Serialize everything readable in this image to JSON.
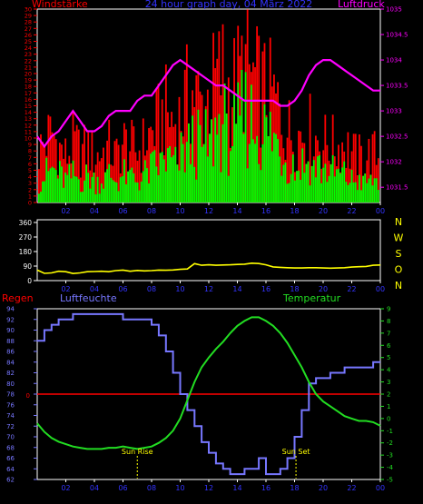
{
  "header": {
    "left_label": "Windstärke",
    "title": "24 hour graph day, 04 März 2022",
    "right_label": "Luftdruck"
  },
  "colors": {
    "background": "#000000",
    "frame": "#ffffff",
    "wind_gust": "#ff0000",
    "wind_avg": "#00ff00",
    "pressure": "#ff00ff",
    "direction": "#ffff00",
    "humidity": "#7777ff",
    "temperature": "#22dd22",
    "rain": "#ff0000",
    "title": "#3333ff",
    "x_ticks": "#3333ff",
    "compass": "#ffff00",
    "sun_marker": "#ffff00"
  },
  "chart_data": [
    {
      "type": "bar",
      "name_left": "Windstärke",
      "name_right": "Luftdruck",
      "x_ticks": [
        "02",
        "04",
        "06",
        "08",
        "10",
        "12",
        "14",
        "16",
        "18",
        "20",
        "22",
        "00"
      ],
      "y_left_ticks": [
        "0",
        "1",
        "2",
        "3",
        "4",
        "5",
        "6",
        "7",
        "8",
        "9",
        "10",
        "11",
        "12",
        "13",
        "14",
        "15",
        "16",
        "17",
        "18",
        "19",
        "20",
        "21",
        "22",
        "23",
        "24",
        "25",
        "26",
        "27",
        "28",
        "29",
        "30"
      ],
      "y_left_range": [
        0,
        30
      ],
      "y_right_ticks": [
        "1031.5",
        "1032",
        "1032.5",
        "1033",
        "1033.5",
        "1034",
        "1034.5",
        "1035"
      ],
      "y_right_range": [
        1031.2,
        1035
      ],
      "x_range_hours": [
        0,
        24
      ],
      "series": [
        {
          "name": "gust",
          "sample_hours": [
            0,
            0.5,
            1,
            1.5,
            2,
            2.5,
            3,
            3.5,
            4,
            4.5,
            5,
            5.5,
            6,
            6.5,
            7,
            7.5,
            8,
            8.5,
            9,
            9.5,
            10,
            10.5,
            11,
            11.5,
            12,
            12.5,
            13,
            13.5,
            14,
            14.5,
            15,
            15.5,
            16,
            16.5,
            17,
            17.5,
            18,
            18.5,
            19,
            19.5,
            20,
            20.5,
            21,
            21.5,
            22,
            22.5,
            23,
            23.5,
            24
          ],
          "values": [
            10,
            12,
            14,
            11,
            9,
            12,
            10,
            11,
            9,
            10,
            11,
            9,
            12,
            11,
            10,
            12,
            14,
            16,
            18,
            16,
            17,
            21,
            22,
            19,
            21,
            24,
            26,
            22,
            24,
            27,
            25,
            23,
            22,
            21,
            18,
            15,
            13,
            14,
            15,
            13,
            12,
            12,
            11,
            12,
            10,
            9,
            9,
            10,
            9
          ]
        },
        {
          "name": "average",
          "sample_hours": [
            0,
            0.5,
            1,
            1.5,
            2,
            2.5,
            3,
            3.5,
            4,
            4.5,
            5,
            5.5,
            6,
            6.5,
            7,
            7.5,
            8,
            8.5,
            9,
            9.5,
            10,
            10.5,
            11,
            11.5,
            12,
            12.5,
            13,
            13.5,
            14,
            14.5,
            15,
            15.5,
            16,
            16.5,
            17,
            17.5,
            18,
            18.5,
            19,
            19.5,
            20,
            20.5,
            21,
            21.5,
            22,
            22.5,
            23,
            23.5,
            24
          ],
          "values": [
            4,
            5,
            6,
            5,
            4,
            5,
            4,
            5,
            4,
            4,
            5,
            4,
            5,
            5,
            4,
            5,
            6,
            7,
            8,
            7,
            8,
            10,
            11,
            10,
            11,
            13,
            15,
            12,
            14,
            16,
            15,
            13,
            13,
            12,
            10,
            8,
            7,
            7,
            8,
            7,
            6,
            6,
            5,
            5,
            4,
            4,
            4,
            4,
            4
          ]
        },
        {
          "name": "pressure",
          "axis": "right",
          "x": [
            0,
            0.5,
            1,
            1.5,
            2,
            2.5,
            3,
            3.5,
            4,
            4.5,
            5,
            5.5,
            6,
            6.5,
            7,
            7.5,
            8,
            8.5,
            9,
            9.5,
            10,
            10.5,
            11,
            11.5,
            12,
            12.5,
            13,
            13.5,
            14,
            14.5,
            15,
            15.5,
            16,
            16.5,
            17,
            17.5,
            18,
            18.5,
            19,
            19.5,
            20,
            20.5,
            21,
            21.5,
            22,
            22.5,
            23,
            23.5,
            24
          ],
          "values": [
            1032.5,
            1032.3,
            1032.5,
            1032.6,
            1032.8,
            1033.0,
            1032.8,
            1032.6,
            1032.6,
            1032.7,
            1032.9,
            1033.0,
            1033.0,
            1033.0,
            1033.2,
            1033.3,
            1033.3,
            1033.5,
            1033.7,
            1033.9,
            1034.0,
            1033.9,
            1033.8,
            1033.7,
            1033.6,
            1033.5,
            1033.5,
            1033.4,
            1033.3,
            1033.2,
            1033.2,
            1033.2,
            1033.2,
            1033.2,
            1033.1,
            1033.1,
            1033.2,
            1033.4,
            1033.7,
            1033.9,
            1034.0,
            1034.0,
            1033.9,
            1033.8,
            1033.7,
            1033.6,
            1033.5,
            1033.4,
            1033.4
          ]
        }
      ]
    },
    {
      "type": "line",
      "x_ticks": [
        "02",
        "04",
        "06",
        "08",
        "10",
        "12",
        "14",
        "16",
        "18",
        "20",
        "22",
        "00"
      ],
      "y_ticks": [
        "0",
        "90",
        "180",
        "270",
        "360"
      ],
      "y_range": [
        0,
        360
      ],
      "compass_labels": [
        "N",
        "W",
        "S",
        "O",
        "N"
      ],
      "series": [
        {
          "name": "direction",
          "x": [
            0,
            0.5,
            1,
            1.5,
            2,
            2.5,
            3,
            3.5,
            4,
            4.5,
            5,
            5.5,
            6,
            6.5,
            7,
            7.5,
            8,
            8.5,
            9,
            9.5,
            10,
            10.5,
            11,
            11.5,
            12,
            12.5,
            13,
            13.5,
            14,
            14.5,
            15,
            15.5,
            16,
            16.5,
            17,
            17.5,
            18,
            18.5,
            19,
            19.5,
            20,
            20.5,
            21,
            21.5,
            22,
            22.5,
            23,
            23.5,
            24
          ],
          "values": [
            65,
            45,
            48,
            58,
            55,
            44,
            48,
            55,
            56,
            58,
            55,
            62,
            65,
            58,
            63,
            60,
            62,
            65,
            64,
            66,
            70,
            72,
            105,
            95,
            98,
            95,
            97,
            98,
            100,
            102,
            108,
            106,
            98,
            85,
            82,
            80,
            78,
            78,
            80,
            80,
            78,
            77,
            78,
            80,
            84,
            86,
            88,
            95,
            97
          ]
        }
      ]
    },
    {
      "type": "line",
      "left_label": "Regen",
      "mid_label": "Luftfeuchte",
      "right_label": "Temperatur",
      "x_ticks": [
        "02",
        "04",
        "06",
        "08",
        "10",
        "12",
        "14",
        "16",
        "18",
        "20",
        "22",
        "00"
      ],
      "rain_tick": "0",
      "humidity_ticks": [
        "62",
        "64",
        "66",
        "68",
        "70",
        "72",
        "74",
        "76",
        "78",
        "80",
        "82",
        "84",
        "86",
        "88",
        "90",
        "92",
        "94"
      ],
      "humidity_range": [
        62,
        94
      ],
      "temperature_ticks": [
        "-5",
        "-4",
        "-3",
        "-2",
        "-1",
        "0",
        "1",
        "2",
        "3",
        "4",
        "5",
        "6",
        "7",
        "8",
        "9"
      ],
      "temperature_range": [
        -5,
        9
      ],
      "annotations": [
        {
          "text": "Sun Rise",
          "x_hour": 7
        },
        {
          "text": "Sun Set",
          "x_hour": 18.1
        }
      ],
      "series": [
        {
          "name": "humidity",
          "x": [
            0,
            0.5,
            1,
            1.5,
            2,
            2.5,
            3,
            3.5,
            4,
            4.5,
            5,
            5.5,
            6,
            6.5,
            7,
            7.5,
            8,
            8.5,
            9,
            9.5,
            10,
            10.5,
            11,
            11.5,
            12,
            12.5,
            13,
            13.5,
            14,
            14.5,
            15,
            15.5,
            16,
            16.5,
            17,
            17.5,
            18,
            18.5,
            19,
            19.5,
            20,
            20.5,
            21,
            21.5,
            22,
            22.5,
            23,
            23.5,
            24
          ],
          "values": [
            88,
            90,
            91,
            92,
            92,
            93,
            93,
            93,
            93,
            93,
            93,
            93,
            92,
            92,
            92,
            92,
            91,
            89,
            86,
            82,
            78,
            75,
            72,
            69,
            67,
            65,
            64,
            63,
            63,
            64,
            64,
            66,
            63,
            63,
            64,
            66,
            70,
            75,
            80,
            81,
            81,
            82,
            82,
            83,
            83,
            83,
            83,
            84,
            84
          ]
        },
        {
          "name": "temperature",
          "x": [
            0,
            0.5,
            1,
            1.5,
            2,
            2.5,
            3,
            3.5,
            4,
            4.5,
            5,
            5.5,
            6,
            6.5,
            7,
            7.5,
            8,
            8.5,
            9,
            9.5,
            10,
            10.5,
            11,
            11.5,
            12,
            12.5,
            13,
            13.5,
            14,
            14.5,
            15,
            15.5,
            16,
            16.5,
            17,
            17.5,
            18,
            18.5,
            19,
            19.5,
            20,
            20.5,
            21,
            21.5,
            22,
            22.5,
            23,
            23.5,
            24
          ],
          "values": [
            -0.4,
            -1.1,
            -1.6,
            -1.9,
            -2.1,
            -2.3,
            -2.4,
            -2.5,
            -2.5,
            -2.5,
            -2.4,
            -2.4,
            -2.3,
            -2.4,
            -2.5,
            -2.4,
            -2.3,
            -2.0,
            -1.6,
            -1.0,
            0.0,
            1.5,
            3.0,
            4.2,
            5.0,
            5.7,
            6.3,
            7.0,
            7.6,
            8.0,
            8.3,
            8.3,
            8.0,
            7.6,
            7.0,
            6.2,
            5.2,
            4.2,
            3.0,
            2.0,
            1.4,
            1.0,
            0.6,
            0.2,
            0.0,
            -0.2,
            -0.2,
            -0.3,
            -0.6
          ]
        },
        {
          "name": "rain",
          "x": [
            0,
            24
          ],
          "values": [
            0,
            0
          ]
        }
      ]
    }
  ]
}
